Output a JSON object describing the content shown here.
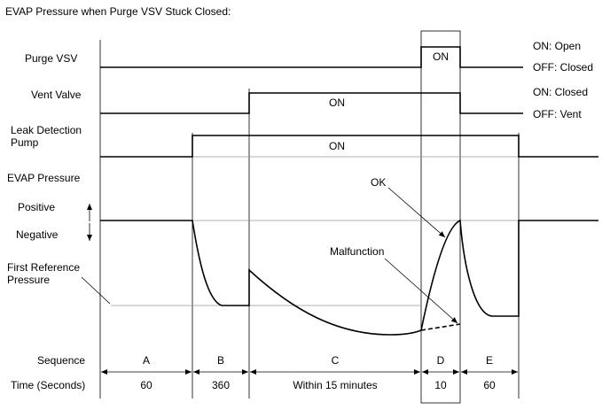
{
  "title": "EVAP Pressure when Purge VSV Stuck Closed:",
  "signals": [
    {
      "label": [
        "Purge VSV"
      ],
      "state": "ON",
      "on_label": "ON: Open",
      "off_label": "OFF: Closed"
    },
    {
      "label": [
        "Vent Valve"
      ],
      "state": "ON",
      "on_label": "ON: Closed",
      "off_label": "OFF: Vent"
    },
    {
      "label": [
        "Leak Detection",
        "Pump"
      ],
      "state": "ON"
    }
  ],
  "pressure": {
    "label": "EVAP Pressure",
    "positive": "Positive",
    "negative": "Negative",
    "reference": [
      "First Reference",
      "Pressure"
    ],
    "ok": "OK",
    "malfunction": "Malfunction"
  },
  "sequence": {
    "label": "Sequence",
    "steps": [
      "A",
      "B",
      "C",
      "D",
      "E"
    ]
  },
  "time": {
    "label": "Time (Seconds)",
    "values": [
      "60",
      "360",
      "Within 15 minutes",
      "10",
      "60"
    ]
  }
}
